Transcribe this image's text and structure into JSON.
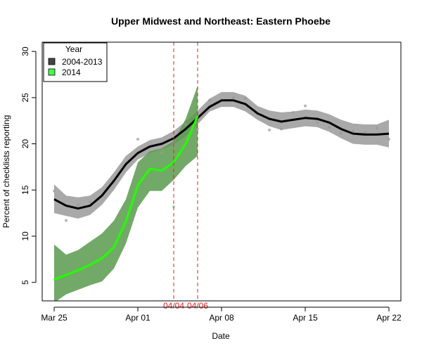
{
  "chart_data": {
    "type": "line",
    "title": "Upper Midwest and Northeast: Eastern Phoebe",
    "xlabel": "Date",
    "ylabel": "Percent of checklists reporting",
    "xlim": [
      -1,
      29
    ],
    "ylim": [
      3,
      31
    ],
    "x_ticks": [
      {
        "x": 0,
        "label": "Mar 25"
      },
      {
        "x": 7,
        "label": "Apr 01"
      },
      {
        "x": 14,
        "label": "Apr 08"
      },
      {
        "x": 21,
        "label": "Apr 15"
      },
      {
        "x": 28,
        "label": "Apr 22"
      }
    ],
    "y_ticks": [
      5,
      10,
      15,
      20,
      25,
      30
    ],
    "legend": {
      "title": "Year",
      "position": "top-left",
      "entries": [
        {
          "label": "2004-2013",
          "color": "#444444"
        },
        {
          "label": "2014",
          "color": "#44ff44"
        }
      ]
    },
    "reference_lines": [
      {
        "x": 10,
        "label": "04/04",
        "color": "#dd2222"
      },
      {
        "x": 12,
        "label": "04/06",
        "color": "#dd2222"
      }
    ],
    "series": [
      {
        "name": "2004-2013",
        "line_color": "#000000",
        "band_color": "#a9a9a9",
        "x": [
          0,
          1,
          2,
          3,
          4,
          5,
          6,
          7,
          8,
          9,
          10,
          11,
          12,
          13,
          14,
          15,
          16,
          17,
          18,
          19,
          20,
          21,
          22,
          23,
          24,
          25,
          26,
          27,
          28
        ],
        "values": [
          14.0,
          13.3,
          13.0,
          13.3,
          14.4,
          16.0,
          17.8,
          19.0,
          19.7,
          20.0,
          20.6,
          21.6,
          22.8,
          24.0,
          24.7,
          24.7,
          24.3,
          23.3,
          22.7,
          22.4,
          22.6,
          22.8,
          22.7,
          22.3,
          21.6,
          21.1,
          21.0,
          21.0,
          21.1
        ],
        "lower": [
          12.5,
          12.2,
          11.9,
          12.3,
          13.4,
          15.0,
          16.9,
          18.3,
          19.0,
          19.4,
          19.9,
          20.8,
          22.1,
          23.5,
          24.0,
          24.0,
          23.5,
          22.6,
          21.9,
          21.5,
          21.7,
          21.9,
          21.8,
          21.3,
          20.6,
          20.0,
          19.9,
          19.9,
          19.6
        ],
        "upper": [
          15.6,
          14.4,
          14.2,
          14.4,
          15.3,
          16.9,
          18.7,
          19.7,
          20.4,
          20.7,
          21.4,
          22.4,
          23.6,
          24.9,
          25.6,
          25.6,
          25.2,
          24.1,
          23.6,
          23.4,
          23.5,
          23.7,
          23.6,
          23.2,
          22.6,
          22.2,
          22.1,
          22.1,
          22.6
        ],
        "points_x": [
          0,
          1,
          2,
          3,
          5,
          7,
          9,
          10,
          11,
          12,
          13,
          15,
          16,
          17,
          18,
          19,
          20,
          21,
          22,
          23,
          24,
          25,
          26,
          27,
          28
        ],
        "points_y": [
          14.9,
          11.7,
          13.4,
          13.7,
          15.8,
          20.5,
          19.0,
          19.9,
          22.1,
          21.6,
          24.7,
          25.0,
          24.9,
          23.2,
          21.5,
          21.6,
          23.4,
          24.1,
          22.3,
          21.8,
          21.2,
          21.4,
          21.2,
          21.7,
          20.5
        ]
      },
      {
        "name": "2014",
        "line_color": "#22ff00",
        "band_color": "#5a9a4e",
        "x": [
          0,
          1,
          2,
          3,
          4,
          5,
          6,
          7,
          8,
          9,
          10,
          11,
          12
        ],
        "values": [
          5.3,
          5.8,
          6.3,
          6.9,
          7.6,
          8.8,
          11.6,
          15.5,
          17.3,
          17.1,
          18.0,
          20.0,
          23.0
        ],
        "lower": [
          2.8,
          3.7,
          4.2,
          4.7,
          5.1,
          6.5,
          9.2,
          13.1,
          14.9,
          14.9,
          16.1,
          17.6,
          18.7
        ],
        "upper": [
          9.1,
          8.0,
          8.5,
          9.4,
          10.3,
          11.7,
          14.0,
          18.0,
          19.2,
          19.5,
          20.3,
          22.7,
          26.3
        ],
        "points_x": [
          10
        ],
        "points_y": [
          13.2
        ]
      }
    ]
  }
}
